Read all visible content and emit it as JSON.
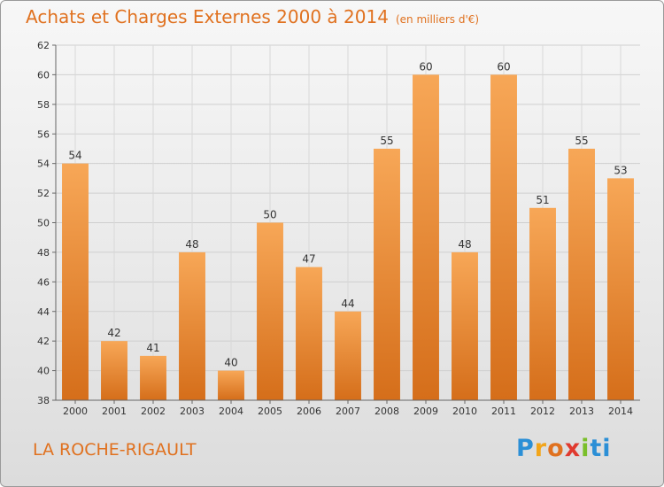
{
  "header": {
    "title": "Achats et Charges Externes 2000 à 2014",
    "subtitle": "(en milliers d'€)"
  },
  "commune": "LA ROCHE-RIGAULT",
  "logo": "Proxiti",
  "colors": {
    "bar_top": "#f7a757",
    "bar_bottom": "#d56e1a",
    "title": "#e0711f"
  },
  "chart_data": {
    "type": "bar",
    "categories": [
      "2000",
      "2001",
      "2002",
      "2003",
      "2004",
      "2005",
      "2006",
      "2007",
      "2008",
      "2009",
      "2010",
      "2011",
      "2012",
      "2013",
      "2014"
    ],
    "values": [
      54,
      42,
      41,
      48,
      40,
      50,
      47,
      44,
      55,
      60,
      48,
      60,
      51,
      55,
      53
    ],
    "ylim": [
      38,
      62
    ],
    "yticks": [
      38,
      40,
      42,
      44,
      46,
      48,
      50,
      52,
      54,
      56,
      58,
      60,
      62
    ],
    "grid": true,
    "data_labels": true
  }
}
